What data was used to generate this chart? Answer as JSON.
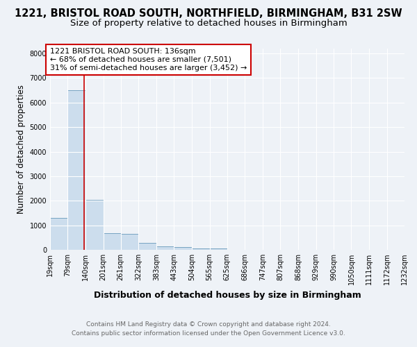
{
  "title": "1221, BRISTOL ROAD SOUTH, NORTHFIELD, BIRMINGHAM, B31 2SW",
  "subtitle": "Size of property relative to detached houses in Birmingham",
  "xlabel": "Distribution of detached houses by size in Birmingham",
  "ylabel": "Number of detached properties",
  "bin_labels": [
    "19sqm",
    "79sqm",
    "140sqm",
    "201sqm",
    "261sqm",
    "322sqm",
    "383sqm",
    "443sqm",
    "504sqm",
    "565sqm",
    "625sqm",
    "686sqm",
    "747sqm",
    "807sqm",
    "868sqm",
    "929sqm",
    "990sqm",
    "1050sqm",
    "1111sqm",
    "1172sqm",
    "1232sqm"
  ],
  "bin_edges": [
    19,
    79,
    140,
    201,
    261,
    322,
    383,
    443,
    504,
    565,
    625,
    686,
    747,
    807,
    868,
    929,
    990,
    1050,
    1111,
    1172,
    1232
  ],
  "bar_heights": [
    1310,
    6500,
    2050,
    670,
    650,
    290,
    140,
    100,
    60,
    60,
    0,
    0,
    0,
    0,
    0,
    0,
    0,
    0,
    0,
    0
  ],
  "bar_color": "#ccdded",
  "bar_edgecolor": "#6699bb",
  "property_size": 136,
  "vline_color": "#cc0000",
  "annotation_line1": "1221 BRISTOL ROAD SOUTH: 136sqm",
  "annotation_line2": "← 68% of detached houses are smaller (7,501)",
  "annotation_line3": "31% of semi-detached houses are larger (3,452) →",
  "annotation_box_color": "#ffffff",
  "annotation_border_color": "#cc0000",
  "ylim": [
    0,
    8200
  ],
  "yticks": [
    0,
    1000,
    2000,
    3000,
    4000,
    5000,
    6000,
    7000,
    8000
  ],
  "footer_line1": "Contains HM Land Registry data © Crown copyright and database right 2024.",
  "footer_line2": "Contains public sector information licensed under the Open Government Licence v3.0.",
  "background_color": "#eef2f7",
  "grid_color": "#ffffff",
  "title_fontsize": 10.5,
  "subtitle_fontsize": 9.5,
  "ylabel_fontsize": 8.5,
  "xlabel_fontsize": 9,
  "tick_fontsize": 7,
  "annotation_fontsize": 8,
  "footer_fontsize": 6.5
}
